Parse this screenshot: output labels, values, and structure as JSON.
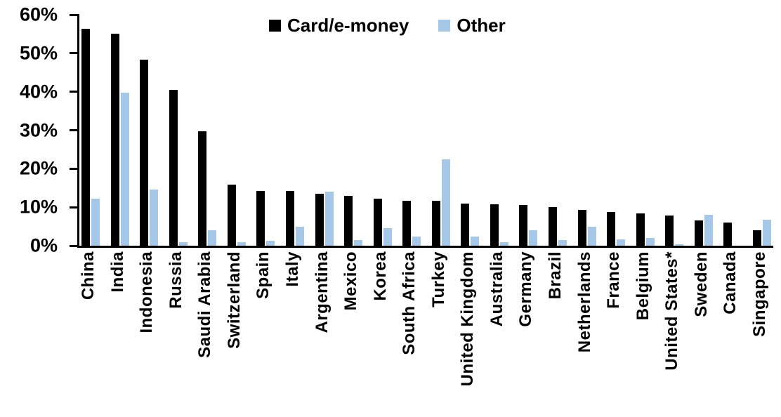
{
  "chart_data": {
    "type": "bar",
    "title": "",
    "xlabel": "",
    "ylabel": "",
    "ylim": [
      0,
      60
    ],
    "yticks": [
      0,
      10,
      20,
      30,
      40,
      50,
      60
    ],
    "ytick_suffix": "%",
    "grid": false,
    "legend_position": "top-center",
    "categories": [
      "China",
      "India",
      "Indonesia",
      "Russia",
      "Saudi Arabia",
      "Switzerland",
      "Spain",
      "Italy",
      "Argentina",
      "Mexico",
      "Korea",
      "South Africa",
      "Turkey",
      "United Kingdom",
      "Australia",
      "Germany",
      "Brazil",
      "Netherlands",
      "France",
      "Belgium",
      "United States*",
      "Sweden",
      "Canada",
      "Singapore"
    ],
    "series": [
      {
        "name": "Card/e-money",
        "color": "#000000",
        "values": [
          56.4,
          55.0,
          48.3,
          40.4,
          29.8,
          15.8,
          14.3,
          14.2,
          13.5,
          13.0,
          12.2,
          11.7,
          11.6,
          11.0,
          10.7,
          10.6,
          10.0,
          9.3,
          8.7,
          8.3,
          7.8,
          6.5,
          6.0,
          4.0
        ]
      },
      {
        "name": "Other",
        "color": "#A5C8E8",
        "values": [
          12.3,
          39.7,
          14.5,
          1.0,
          4.0,
          1.0,
          1.2,
          4.9,
          14.1,
          1.5,
          4.5,
          2.3,
          22.5,
          2.3,
          0.9,
          4.0,
          1.4,
          5.0,
          1.6,
          2.0,
          0.3,
          8.1,
          0.0,
          6.7
        ]
      }
    ]
  },
  "colors": {
    "axis": "#000000",
    "background": "#FFFFFF",
    "card_series": "#000000",
    "other_series": "#A5C8E8"
  }
}
